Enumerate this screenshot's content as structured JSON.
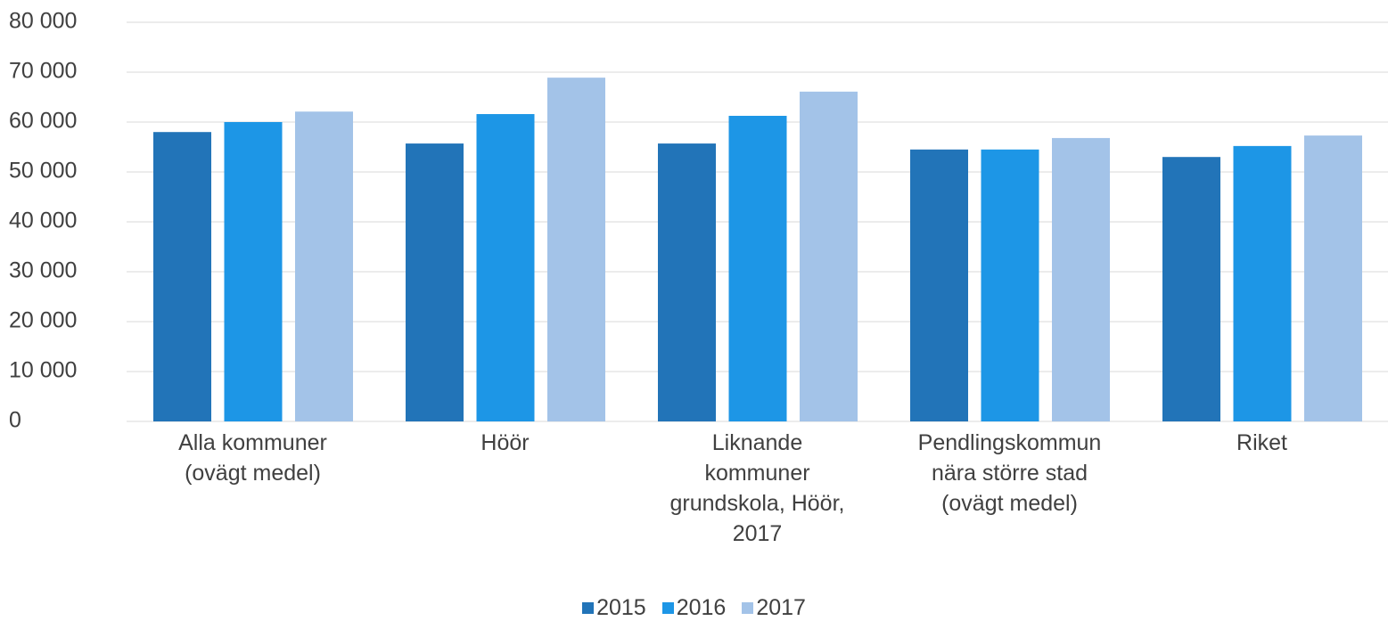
{
  "chart_data": {
    "type": "bar",
    "categories": [
      "Alla kommuner (ovägt medel)",
      "Höör",
      "Liknande kommuner grundskola, Höör, 2017",
      "Pendlingskommun nära större stad (ovägt medel)",
      "Riket"
    ],
    "series": [
      {
        "name": "2015",
        "color": "#2274b8",
        "values": [
          58000,
          55700,
          55700,
          54500,
          53000
        ]
      },
      {
        "name": "2016",
        "color": "#1d96e6",
        "values": [
          60000,
          61600,
          61250,
          54500,
          55200
        ]
      },
      {
        "name": "2017",
        "color": "#a3c3e8",
        "values": [
          62100,
          68900,
          66100,
          56800,
          57300
        ]
      }
    ],
    "ylim": [
      0,
      80000
    ],
    "yticks": [
      {
        "value": 0,
        "label": "0"
      },
      {
        "value": 10000,
        "label": "10 000"
      },
      {
        "value": 20000,
        "label": "20 000"
      },
      {
        "value": 30000,
        "label": "30 000"
      },
      {
        "value": 40000,
        "label": "40 000"
      },
      {
        "value": 50000,
        "label": "50 000"
      },
      {
        "value": 60000,
        "label": "60 000"
      },
      {
        "value": 70000,
        "label": "70 000"
      },
      {
        "value": 80000,
        "label": "80 000"
      }
    ],
    "grid": true,
    "legend": "bottom"
  }
}
